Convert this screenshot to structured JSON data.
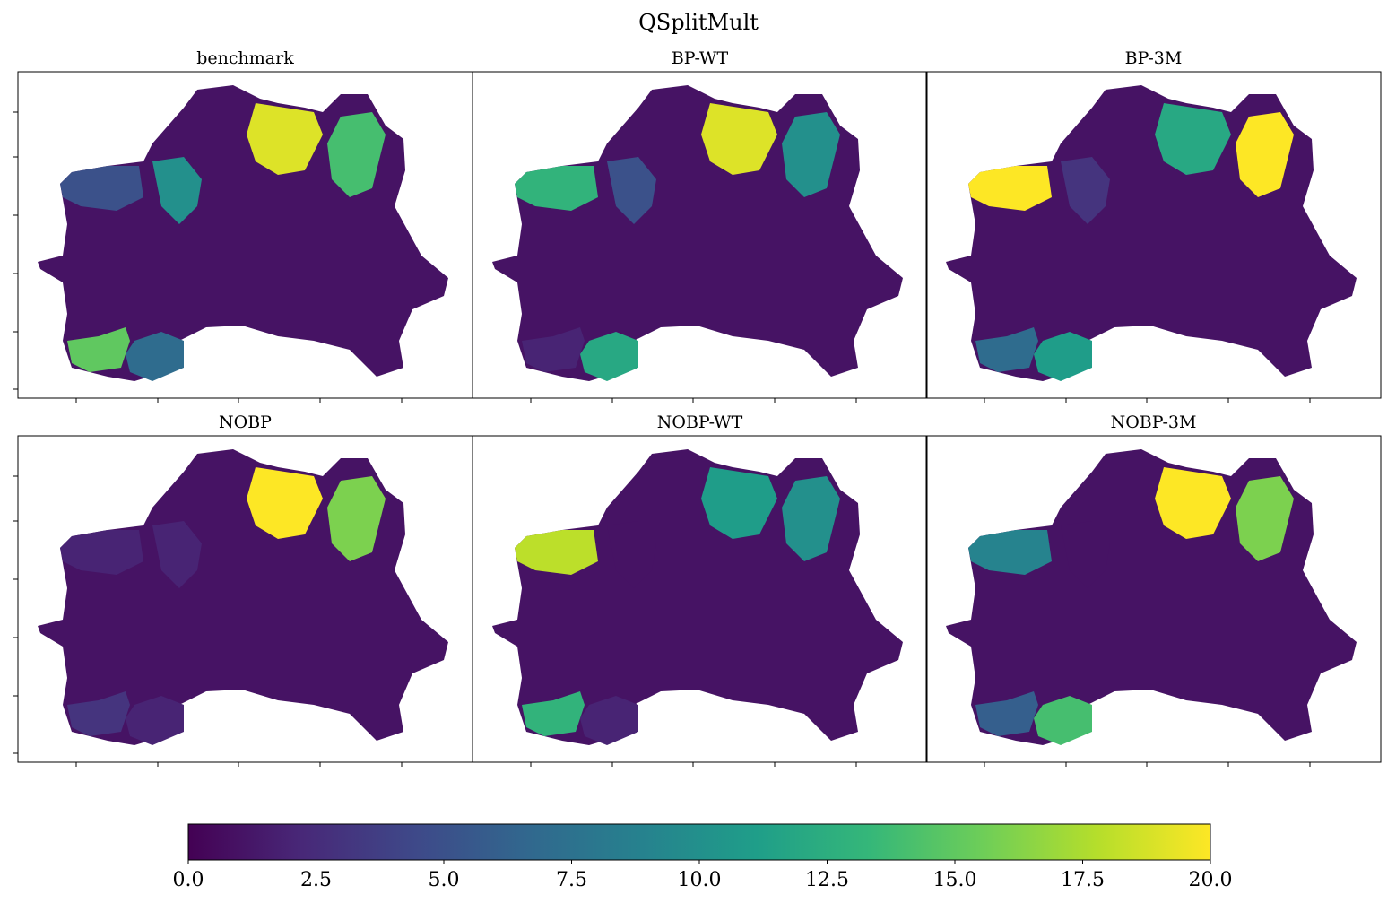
{
  "chart_data": {
    "type": "choropleth-grid",
    "title": "QSplitMult",
    "panels": [
      {
        "title": "benchmark",
        "values": [
          1,
          19,
          14,
          5,
          15,
          7,
          10
        ]
      },
      {
        "title": "BP-WT",
        "values": [
          1,
          19,
          10,
          13,
          2,
          12,
          5
        ]
      },
      {
        "title": "BP-3M",
        "values": [
          1,
          12,
          20,
          20,
          7,
          11,
          3
        ]
      },
      {
        "title": "NOBP",
        "values": [
          1,
          20,
          16,
          2,
          3,
          2,
          2
        ]
      },
      {
        "title": "NOBP-WT",
        "values": [
          1,
          11,
          10,
          18,
          13,
          2,
          1
        ]
      },
      {
        "title": "NOBP-3M",
        "values": [
          1,
          20,
          16,
          9,
          6,
          14,
          1
        ]
      }
    ],
    "colormap": [
      "#440154",
      "#482878",
      "#3e4989",
      "#31688e",
      "#26828e",
      "#1f9e89",
      "#35b779",
      "#6ece58",
      "#b5de2b",
      "#fde725"
    ],
    "clim": [
      0,
      20
    ],
    "cticks": [
      {
        "value": 0,
        "label": "0.0"
      },
      {
        "value": 2.5,
        "label": "2.5"
      },
      {
        "value": 5,
        "label": "5.0"
      },
      {
        "value": 7.5,
        "label": "7.5"
      },
      {
        "value": 10,
        "label": "10.0"
      },
      {
        "value": 12.5,
        "label": "12.5"
      },
      {
        "value": 15,
        "label": "15.0"
      },
      {
        "value": 17.5,
        "label": "17.5"
      },
      {
        "value": 20,
        "label": "20.0"
      }
    ]
  }
}
